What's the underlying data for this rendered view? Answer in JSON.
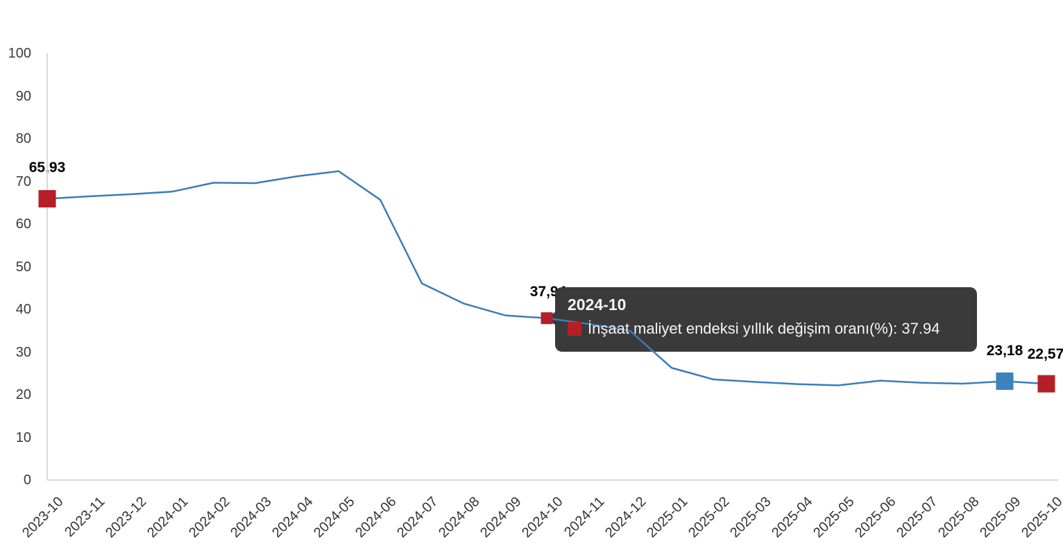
{
  "chart_data": {
    "type": "line",
    "title": "",
    "xlabel": "",
    "ylabel": "",
    "series_name": "İnşaat maliyet endeksi yıllık değişim oranı(%)",
    "categories": [
      "2023-10",
      "2023-11",
      "2023-12",
      "2024-01",
      "2024-02",
      "2024-03",
      "2024-04",
      "2024-05",
      "2024-06",
      "2024-07",
      "2024-08",
      "2024-09",
      "2024-10",
      "2024-11",
      "2024-12",
      "2025-01",
      "2025-02",
      "2025-03",
      "2025-04",
      "2025-05",
      "2025-06",
      "2025-07",
      "2025-08",
      "2025-09",
      "2025-10"
    ],
    "values": [
      65.93,
      66.5,
      67.0,
      67.6,
      69.7,
      69.6,
      71.2,
      72.4,
      65.7,
      46.1,
      41.4,
      38.6,
      37.94,
      36.6,
      35.0,
      26.3,
      23.6,
      23.0,
      22.5,
      22.2,
      23.3,
      22.8,
      22.6,
      23.18,
      22.57
    ],
    "ylim": [
      0,
      100
    ],
    "yticks": [
      0,
      10,
      20,
      30,
      40,
      50,
      60,
      70,
      80,
      90,
      100
    ],
    "grid": false,
    "legend_position": "none",
    "line_color": "#3a7cb8",
    "axis_line_color": "#d9d9d9",
    "marked_points": [
      {
        "index": 0,
        "label": "65,93",
        "color": "#b51f28",
        "size": 25
      },
      {
        "index": 12,
        "label": "37,94",
        "color": "#b51f28",
        "size": 17
      },
      {
        "index": 23,
        "label": "23,18",
        "color": "#3d82bb",
        "size": 25
      },
      {
        "index": 24,
        "label": "22,57",
        "color": "#b51f28",
        "size": 25
      }
    ]
  },
  "tooltip": {
    "title": "2024-10",
    "text": "İnşaat maliyet endeksi yıllık değişim oranı(%): 37.94",
    "swatch_color": "#b32025"
  }
}
